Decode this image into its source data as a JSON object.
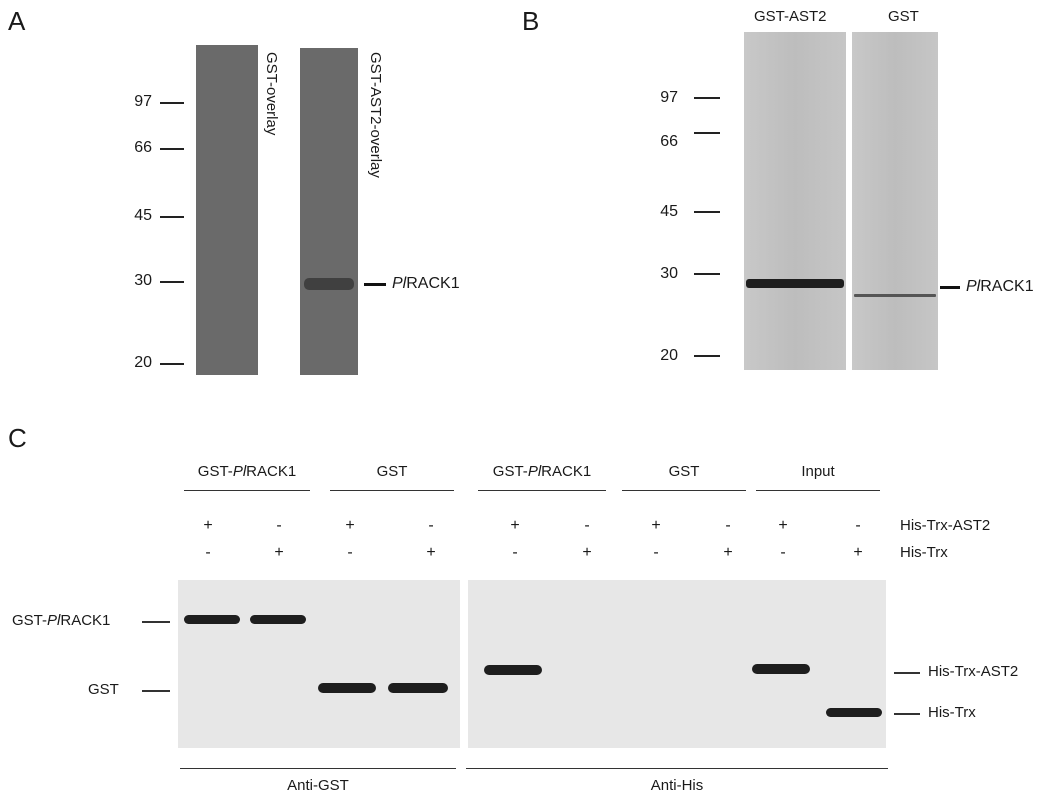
{
  "panels": {
    "a": {
      "letter": "A",
      "mw_markers": [
        "97",
        "66",
        "45",
        "30",
        "20"
      ],
      "lane1_label": "GST-overlay",
      "lane2_label": "GST-AST2-overlay",
      "band_label_italic": "Pl",
      "band_label_rest": "RACK1"
    },
    "b": {
      "letter": "B",
      "lane1_label": "GST-AST2",
      "lane2_label": "GST",
      "mw_markers": [
        "97",
        "66",
        "45",
        "30",
        "20"
      ],
      "band_label_italic": "Pl",
      "band_label_rest": "RACK1"
    },
    "c": {
      "letter": "C",
      "groups": [
        {
          "prefix": "GST-",
          "italic": "Pl",
          "suffix": "RACK1"
        },
        {
          "prefix": "GST",
          "italic": "",
          "suffix": ""
        },
        {
          "prefix": "GST-",
          "italic": "Pl",
          "suffix": "RACK1"
        },
        {
          "prefix": "GST",
          "italic": "",
          "suffix": ""
        },
        {
          "prefix": "Input",
          "italic": "",
          "suffix": ""
        }
      ],
      "row1_signs": [
        "+",
        "-",
        "+",
        "-",
        "+",
        "-",
        "+",
        "-",
        "+",
        "-"
      ],
      "row2_signs": [
        "-",
        "+",
        "-",
        "+",
        "-",
        "+",
        "-",
        "+",
        "-",
        "+"
      ],
      "row1_label": "His-Trx-AST2",
      "row2_label": "His-Trx",
      "left_label1_prefix": "GST-",
      "left_label1_italic": "Pl",
      "left_label1_suffix": "RACK1",
      "left_label2": "GST",
      "right_label1": "His-Trx-AST2",
      "right_label2": "His-Trx",
      "bottom_left": "Anti-GST",
      "bottom_right": "Anti-His"
    }
  }
}
